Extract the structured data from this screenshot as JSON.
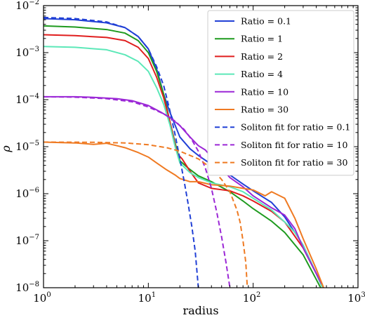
{
  "chart_data": {
    "type": "line",
    "xlabel": "radius",
    "ylabel": "ρ",
    "xscale": "log",
    "yscale": "log",
    "xlim": [
      1,
      1000
    ],
    "ylim": [
      1e-08,
      0.01
    ],
    "x_ticks": [
      {
        "value": 1,
        "base": "10",
        "exp": "0"
      },
      {
        "value": 10,
        "base": "10",
        "exp": "1"
      },
      {
        "value": 100,
        "base": "10",
        "exp": "2"
      },
      {
        "value": 1000,
        "base": "10",
        "exp": "3"
      }
    ],
    "y_ticks": [
      {
        "value": 1e-08,
        "base": "10",
        "exp": "−8"
      },
      {
        "value": 1e-07,
        "base": "10",
        "exp": "−7"
      },
      {
        "value": 1e-06,
        "base": "10",
        "exp": "−6"
      },
      {
        "value": 1e-05,
        "base": "10",
        "exp": "−5"
      },
      {
        "value": 0.0001,
        "base": "10",
        "exp": "−4"
      },
      {
        "value": 0.001,
        "base": "10",
        "exp": "−3"
      },
      {
        "value": 0.01,
        "base": "10",
        "exp": "−2"
      }
    ],
    "grid": false,
    "legend_position": "top-right",
    "series": [
      {
        "name": "Ratio = 0.1",
        "color": "#2140d6",
        "dash": false,
        "points": [
          [
            1,
            0.0053
          ],
          [
            2,
            0.005
          ],
          [
            4,
            0.0043
          ],
          [
            6,
            0.0034
          ],
          [
            8,
            0.0022
          ],
          [
            10,
            0.0012
          ],
          [
            12,
            0.00045
          ],
          [
            14,
            0.00013
          ],
          [
            16,
            5.5e-05
          ],
          [
            20,
            1.6e-05
          ],
          [
            25,
            9e-06
          ],
          [
            30,
            6.5e-06
          ],
          [
            40,
            4.2e-06
          ],
          [
            60,
            2.5e-06
          ],
          [
            80,
            1.6e-06
          ],
          [
            100,
            1.15e-06
          ],
          [
            150,
            6.5e-07
          ],
          [
            200,
            3.2e-07
          ],
          [
            300,
            8e-08
          ],
          [
            400,
            2e-08
          ],
          [
            450,
            1.1e-08
          ]
        ]
      },
      {
        "name": "Ratio = 1",
        "color": "#1e9a1e",
        "dash": false,
        "points": [
          [
            1,
            0.0037
          ],
          [
            2,
            0.0035
          ],
          [
            4,
            0.0031
          ],
          [
            6,
            0.0026
          ],
          [
            8,
            0.0018
          ],
          [
            10,
            0.001
          ],
          [
            12,
            0.0004
          ],
          [
            14,
            0.00013
          ],
          [
            16,
            3.5e-05
          ],
          [
            18,
            1.2e-05
          ],
          [
            20,
            5e-06
          ],
          [
            24,
            3.5e-06
          ],
          [
            30,
            2.4e-06
          ],
          [
            40,
            1.8e-06
          ],
          [
            60,
            1.1e-06
          ],
          [
            80,
            7e-07
          ],
          [
            100,
            4.8e-07
          ],
          [
            150,
            2.6e-07
          ],
          [
            200,
            1.5e-07
          ],
          [
            300,
            5e-08
          ],
          [
            400,
            1.5e-08
          ],
          [
            440,
            1e-08
          ]
        ]
      },
      {
        "name": "Ratio = 2",
        "color": "#e01e1e",
        "dash": false,
        "points": [
          [
            1,
            0.0024
          ],
          [
            2,
            0.0023
          ],
          [
            4,
            0.0021
          ],
          [
            6,
            0.0018
          ],
          [
            8,
            0.0013
          ],
          [
            10,
            0.00075
          ],
          [
            12,
            0.0003
          ],
          [
            14,
            0.00011
          ],
          [
            16,
            3.5e-05
          ],
          [
            18,
            1.1e-05
          ],
          [
            19,
            7e-06
          ],
          [
            21,
            5.5e-06
          ],
          [
            25,
            3e-06
          ],
          [
            30,
            1.7e-06
          ],
          [
            40,
            1.3e-06
          ],
          [
            60,
            1.15e-06
          ],
          [
            80,
            9e-07
          ],
          [
            100,
            7e-07
          ],
          [
            150,
            4.2e-07
          ],
          [
            200,
            2.5e-07
          ],
          [
            300,
            7e-08
          ],
          [
            400,
            2e-08
          ],
          [
            470,
            1e-08
          ]
        ]
      },
      {
        "name": "Ratio = 4",
        "color": "#5ce8b8",
        "dash": false,
        "points": [
          [
            1,
            0.00135
          ],
          [
            2,
            0.0013
          ],
          [
            4,
            0.00115
          ],
          [
            6,
            0.0009
          ],
          [
            8,
            0.00065
          ],
          [
            10,
            0.0004
          ],
          [
            12,
            0.00018
          ],
          [
            14,
            8e-05
          ],
          [
            16,
            3e-05
          ],
          [
            18,
            1e-05
          ],
          [
            20,
            4.5e-06
          ],
          [
            25,
            2.8e-06
          ],
          [
            30,
            2.2e-06
          ],
          [
            40,
            1.7e-06
          ],
          [
            60,
            1.4e-06
          ],
          [
            80,
            1.1e-06
          ],
          [
            100,
            8e-07
          ],
          [
            150,
            4.5e-07
          ],
          [
            200,
            2.5e-07
          ],
          [
            250,
            1.5e-07
          ],
          [
            300,
            8e-08
          ],
          [
            400,
            2e-08
          ],
          [
            460,
            1e-08
          ]
        ]
      },
      {
        "name": "Ratio = 10",
        "color": "#9b27d6",
        "dash": false,
        "points": [
          [
            1,
            0.000115
          ],
          [
            2,
            0.000115
          ],
          [
            3,
            0.000112
          ],
          [
            5,
            0.000105
          ],
          [
            7,
            9.5e-05
          ],
          [
            10,
            7.5e-05
          ],
          [
            13,
            5.5e-05
          ],
          [
            16,
            4.2e-05
          ],
          [
            20,
            2.8e-05
          ],
          [
            25,
            1.6e-05
          ],
          [
            30,
            1.05e-05
          ],
          [
            35,
            8.5e-06
          ],
          [
            40,
            6e-06
          ],
          [
            50,
            3.5e-06
          ],
          [
            60,
            2.2e-06
          ],
          [
            80,
            1.4e-06
          ],
          [
            100,
            9e-07
          ],
          [
            150,
            5e-07
          ],
          [
            200,
            3.5e-07
          ],
          [
            250,
            1.8e-07
          ],
          [
            300,
            7e-08
          ],
          [
            400,
            2e-08
          ],
          [
            450,
            1.2e-08
          ]
        ]
      },
      {
        "name": "Ratio = 30",
        "color": "#ef7a22",
        "dash": false,
        "points": [
          [
            1,
            1.25e-05
          ],
          [
            2,
            1.2e-05
          ],
          [
            3,
            1.12e-05
          ],
          [
            4,
            1.18e-05
          ],
          [
            5,
            1.05e-05
          ],
          [
            6,
            9.5e-06
          ],
          [
            8,
            7.5e-06
          ],
          [
            10,
            6e-06
          ],
          [
            12,
            4.5e-06
          ],
          [
            15,
            3.2e-06
          ],
          [
            18,
            2.5e-06
          ],
          [
            20,
            2.1e-06
          ],
          [
            25,
            1.8e-06
          ],
          [
            30,
            1.8e-06
          ],
          [
            40,
            1.55e-06
          ],
          [
            50,
            1.5e-06
          ],
          [
            60,
            1.45e-06
          ],
          [
            80,
            1.3e-06
          ],
          [
            100,
            1.2e-06
          ],
          [
            130,
            9e-07
          ],
          [
            150,
            1.1e-06
          ],
          [
            200,
            8e-07
          ],
          [
            250,
            3e-07
          ],
          [
            300,
            1.1e-07
          ],
          [
            400,
            2.5e-08
          ],
          [
            470,
            1e-08
          ]
        ]
      },
      {
        "name": "Soliton fit for ratio = 0.1",
        "color": "#2140d6",
        "dash": true,
        "points": [
          [
            1,
            0.0056
          ],
          [
            2,
            0.0053
          ],
          [
            4,
            0.0045
          ],
          [
            6,
            0.0034
          ],
          [
            8,
            0.0022
          ],
          [
            10,
            0.0012
          ],
          [
            12,
            0.0005
          ],
          [
            14,
            0.0002
          ],
          [
            16,
            6e-05
          ],
          [
            18,
            1.8e-05
          ],
          [
            20,
            5.5e-06
          ],
          [
            22,
            1.8e-06
          ],
          [
            24,
            6e-07
          ],
          [
            26,
            2e-07
          ],
          [
            28,
            6e-08
          ],
          [
            30,
            1e-08
          ]
        ]
      },
      {
        "name": "Soliton fit for ratio = 10",
        "color": "#9b27d6",
        "dash": true,
        "points": [
          [
            1,
            0.000115
          ],
          [
            2,
            0.000113
          ],
          [
            4,
            0.000105
          ],
          [
            7,
            9e-05
          ],
          [
            10,
            7e-05
          ],
          [
            14,
            5e-05
          ],
          [
            18,
            3.5e-05
          ],
          [
            22,
            2.3e-05
          ],
          [
            26,
            1.4e-05
          ],
          [
            30,
            8e-06
          ],
          [
            35,
            3.5e-06
          ],
          [
            40,
            1.3e-06
          ],
          [
            45,
            4e-07
          ],
          [
            50,
            1.2e-07
          ],
          [
            55,
            3.5e-08
          ],
          [
            60,
            1e-08
          ]
        ]
      },
      {
        "name": "Soliton fit for ratio = 30",
        "color": "#ef7a22",
        "dash": true,
        "points": [
          [
            1,
            1.25e-05
          ],
          [
            3,
            1.24e-05
          ],
          [
            6,
            1.2e-05
          ],
          [
            10,
            1.1e-05
          ],
          [
            15,
            9.5e-06
          ],
          [
            20,
            8e-06
          ],
          [
            30,
            5.5e-06
          ],
          [
            40,
            3.5e-06
          ],
          [
            50,
            2e-06
          ],
          [
            60,
            1.1e-06
          ],
          [
            70,
            4.5e-07
          ],
          [
            75,
            2.5e-07
          ],
          [
            80,
            1e-07
          ],
          [
            85,
            3.5e-08
          ],
          [
            88,
            1e-08
          ]
        ]
      }
    ]
  }
}
